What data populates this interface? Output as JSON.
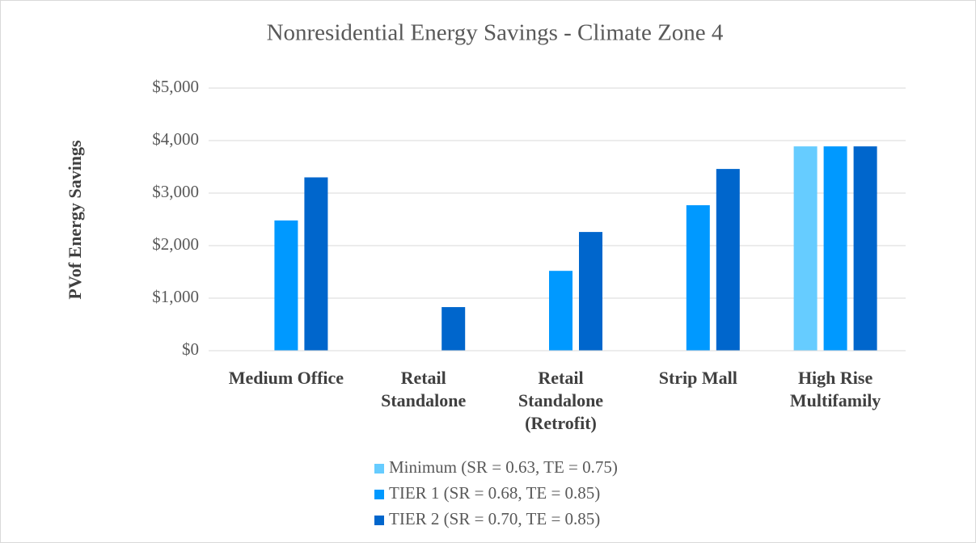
{
  "chart_data": {
    "type": "bar",
    "title": "Nonresidential Energy Savings - Climate Zone 4",
    "y_label": "PVof Energy Savings",
    "categories": [
      "Medium Office",
      "Retail Standalone",
      "Retail Standalone (Retrofit)",
      "Strip Mall",
      "High Rise Multifamily"
    ],
    "series": [
      {
        "name": "Minimum (SR = 0.63, TE = 0.75)",
        "color": "#66ccff",
        "values": [
          0,
          0,
          0,
          0,
          3890
        ]
      },
      {
        "name": "TIER 1 (SR = 0.68, TE = 0.85)",
        "color": "#0099ff",
        "values": [
          2480,
          0,
          1520,
          2770,
          3890
        ]
      },
      {
        "name": "TIER 2 (SR = 0.70, TE = 0.85)",
        "color": "#0066cc",
        "values": [
          3300,
          830,
          2260,
          3460,
          3890
        ]
      }
    ],
    "ylim": [
      0,
      5000
    ],
    "yticks": [
      {
        "value": 0,
        "label": "$0"
      },
      {
        "value": 1000,
        "label": "$1,000"
      },
      {
        "value": 2000,
        "label": "$2,000"
      },
      {
        "value": 3000,
        "label": "$3,000"
      },
      {
        "value": 4000,
        "label": "$4,000"
      },
      {
        "value": 5000,
        "label": "$5,000"
      }
    ],
    "grid": true,
    "legend": "bottom"
  }
}
